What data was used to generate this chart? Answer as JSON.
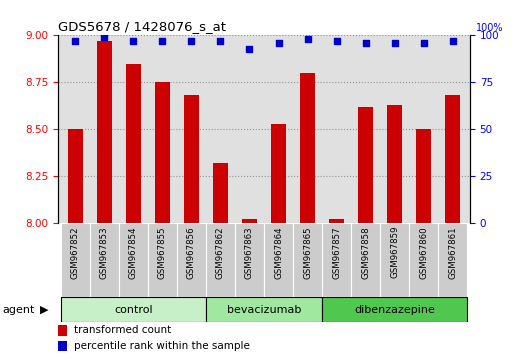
{
  "title": "GDS5678 / 1428076_s_at",
  "samples": [
    "GSM967852",
    "GSM967853",
    "GSM967854",
    "GSM967855",
    "GSM967856",
    "GSM967862",
    "GSM967863",
    "GSM967864",
    "GSM967865",
    "GSM967857",
    "GSM967858",
    "GSM967859",
    "GSM967860",
    "GSM967861"
  ],
  "red_values": [
    8.5,
    8.97,
    8.85,
    8.75,
    8.68,
    8.32,
    8.02,
    8.53,
    8.8,
    8.02,
    8.62,
    8.63,
    8.5,
    8.68
  ],
  "blue_values": [
    97,
    99,
    97,
    97,
    97,
    97,
    93,
    96,
    98,
    97,
    96,
    96,
    96,
    97
  ],
  "groups": [
    {
      "label": "control",
      "start": 0,
      "end": 5,
      "color": "#c8f0c8"
    },
    {
      "label": "bevacizumab",
      "start": 5,
      "end": 9,
      "color": "#a0e8a0"
    },
    {
      "label": "dibenzazepine",
      "start": 9,
      "end": 14,
      "color": "#50c850"
    }
  ],
  "ylim_left": [
    8.0,
    9.0
  ],
  "ylim_right": [
    0,
    100
  ],
  "yticks_left": [
    8.0,
    8.25,
    8.5,
    8.75,
    9.0
  ],
  "yticks_right": [
    0,
    25,
    50,
    75,
    100
  ],
  "bar_color": "#cc0000",
  "dot_color": "#0000cc",
  "bg_color": "#e0e0e0",
  "legend_bar_label": "transformed count",
  "legend_dot_label": "percentile rank within the sample",
  "agent_label": "agent"
}
